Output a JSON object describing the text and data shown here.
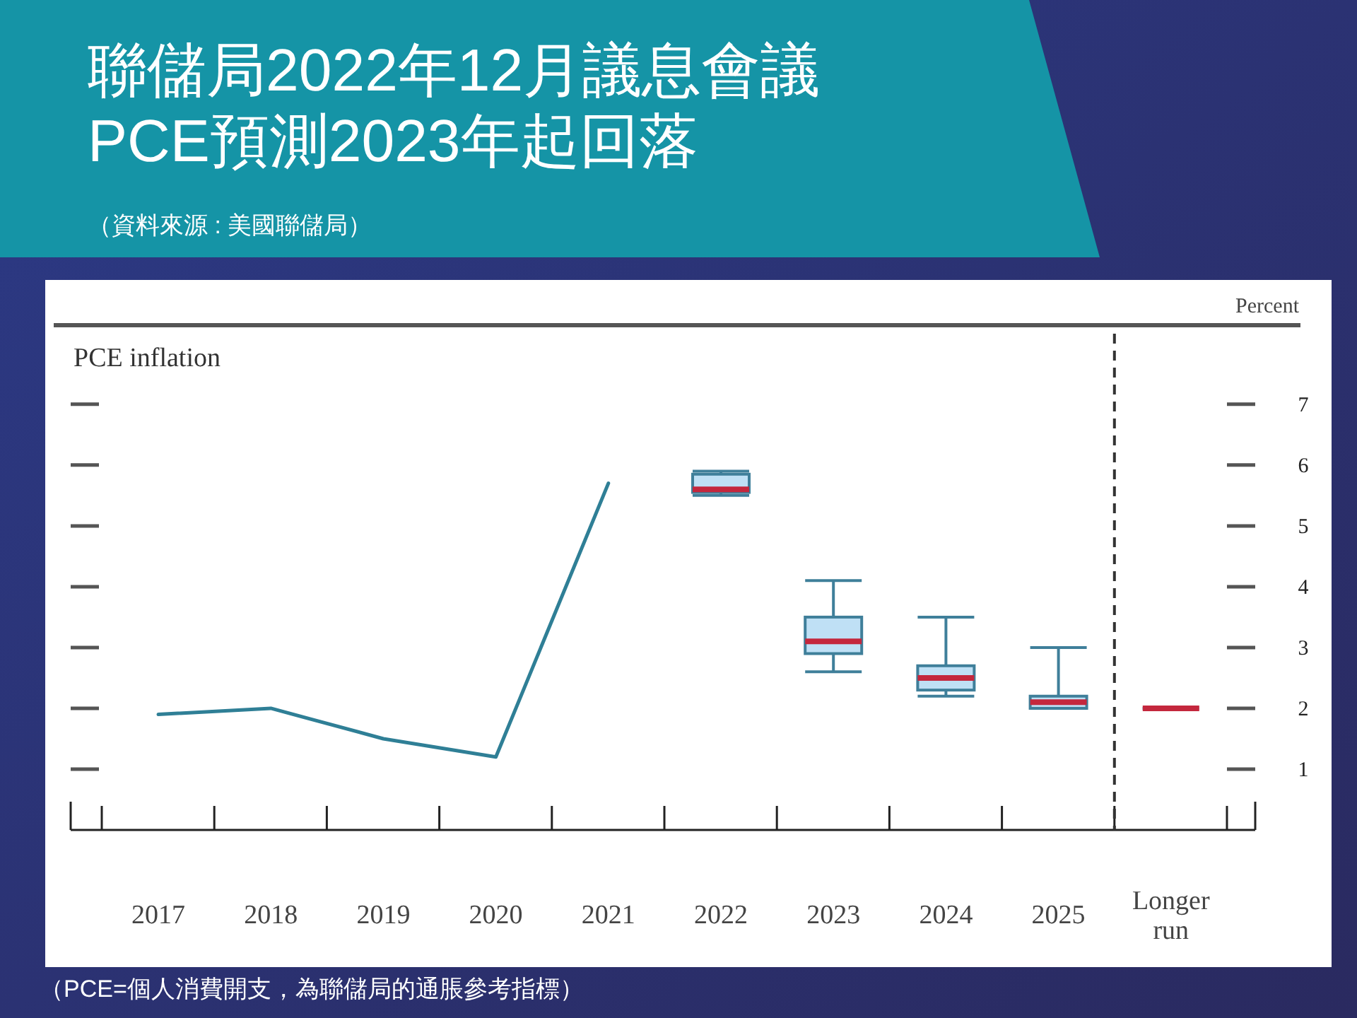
{
  "chart_data": {
    "type": "box",
    "title": "聯儲局2022年12月議息會議\nPCE預測2023年起回落",
    "subtitle": "（資料來源 : 美國聯儲局）",
    "ylabel": "Percent",
    "annotations": [
      "PCE inflation",
      "（PCE=個人消費開支，為聯儲局的通脹參考指標）"
    ],
    "categories": [
      "2017",
      "2018",
      "2019",
      "2020",
      "2021",
      "2022",
      "2023",
      "2024",
      "2025",
      "Longer run"
    ],
    "ylim": [
      0,
      8.3
    ],
    "yticks": [
      1,
      2,
      3,
      4,
      5,
      6,
      7
    ],
    "tick_labels": "y",
    "series": [
      {
        "type": "line",
        "color": "#2f7f96",
        "values": [
          1.9,
          2.0,
          1.5,
          1.2,
          5.7,
          null,
          null,
          null,
          null,
          null
        ]
      },
      {
        "color": "#bfe0f5",
        "boxes": [
          null,
          null,
          null,
          null,
          null,
          {
            "low": 5.5,
            "q1": 5.55,
            "median": 5.6,
            "q3": 5.85,
            "high": 5.9
          },
          {
            "low": 2.6,
            "q1": 2.9,
            "median": 3.1,
            "q3": 3.5,
            "high": 4.1
          },
          {
            "low": 2.2,
            "q1": 2.3,
            "median": 2.5,
            "q3": 2.7,
            "high": 3.5
          },
          {
            "low": 2.0,
            "q1": 2.0,
            "median": 2.1,
            "q3": 2.2,
            "high": 3.0
          },
          {
            "low": 2.0,
            "q1": 2.0,
            "median": 2.0,
            "q3": 2.0,
            "high": 2.0
          }
        ]
      }
    ]
  }
}
